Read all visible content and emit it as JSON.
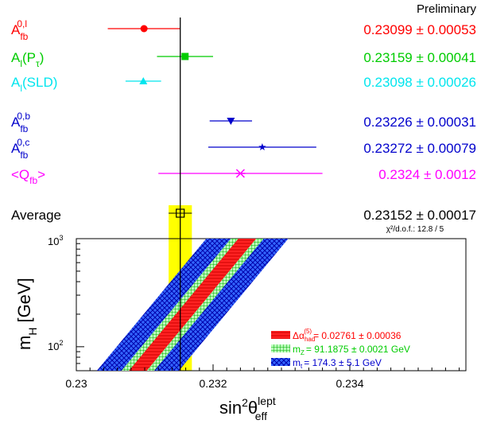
{
  "header": {
    "preliminary": "Preliminary"
  },
  "measurements": [
    {
      "base": "A",
      "sub": "fb",
      "sup": "0,l",
      "value_text": "0.23099 ± 0.00053",
      "value": 0.23099,
      "error": 0.00053,
      "color": "#ff0000",
      "marker": "circle"
    },
    {
      "base": "A",
      "sub": "l",
      "paren": "(P",
      "paren_sub": "τ",
      "paren_close": ")",
      "value_text": "0.23159 ± 0.00041",
      "value": 0.23159,
      "error": 0.00041,
      "color": "#00cc00",
      "marker": "square"
    },
    {
      "base": "A",
      "sub": "l",
      "paren": "(SLD)",
      "value_text": "0.23098 ± 0.00026",
      "value": 0.23098,
      "error": 0.00026,
      "color": "#00e5ee",
      "marker": "triangle-up"
    },
    {
      "base": "A",
      "sub": "fb",
      "sup": "0,b",
      "value_text": "0.23226 ± 0.00031",
      "value": 0.23226,
      "error": 0.00031,
      "color": "#0000cc",
      "marker": "triangle-down"
    },
    {
      "base": "A",
      "sub": "fb",
      "sup": "0,c",
      "value_text": "0.23272 ± 0.00079",
      "value": 0.23272,
      "error": 0.00079,
      "color": "#0000cc",
      "marker": "star"
    },
    {
      "base": "<Q",
      "sub": "fb",
      "close": ">",
      "value_text": "0.2324 ± 0.0012",
      "value": 0.2324,
      "error": 0.0012,
      "color": "#ff00ff",
      "marker": "cross"
    }
  ],
  "average": {
    "label": "Average",
    "value_text": "0.23152 ± 0.00017",
    "value": 0.23152,
    "error": 0.00017,
    "chi2": "χ²/d.o.f.: 12.8 / 5",
    "band_color": "#ffff00"
  },
  "chart_data": {
    "type": "scatter",
    "xlim": [
      0.23,
      0.236
    ],
    "ylim": [
      60,
      1000
    ],
    "ylog": true,
    "x_ticks": [
      "0.23",
      "0.232",
      "0.234"
    ],
    "y_ticks": [
      {
        "base": "10",
        "exp": "2",
        "value": 100
      },
      {
        "base": "10",
        "exp": "3",
        "value": 1000
      }
    ],
    "xlabel": {
      "base": "sin",
      "sup1": "2",
      "theta": "θ",
      "sup2": "lept",
      "sub": "eff"
    },
    "ylabel": {
      "base": "m",
      "sub": "H",
      "unit": "[GeV]"
    },
    "band_points": [
      [
        0.2309,
        60
      ],
      [
        0.2325,
        1000
      ]
    ],
    "band_widths": {
      "inner": 0.00013,
      "middle": 0.00024,
      "outer": 0.0006
    },
    "legend": [
      {
        "prefix": "Δα",
        "sub": "had",
        "sup": "(5)",
        "text": "= 0.02761 ± 0.00036",
        "color": "#ff0000",
        "pattern": "red"
      },
      {
        "prefix": "m",
        "sub": "Z",
        "text": "= 91.1875 ± 0.0021 GeV",
        "color": "#00cc00",
        "pattern": "green"
      },
      {
        "prefix": "m",
        "sub": "t",
        "text": "= 174.3 ± 5.1 GeV",
        "color": "#0000cc",
        "pattern": "blue"
      }
    ]
  }
}
